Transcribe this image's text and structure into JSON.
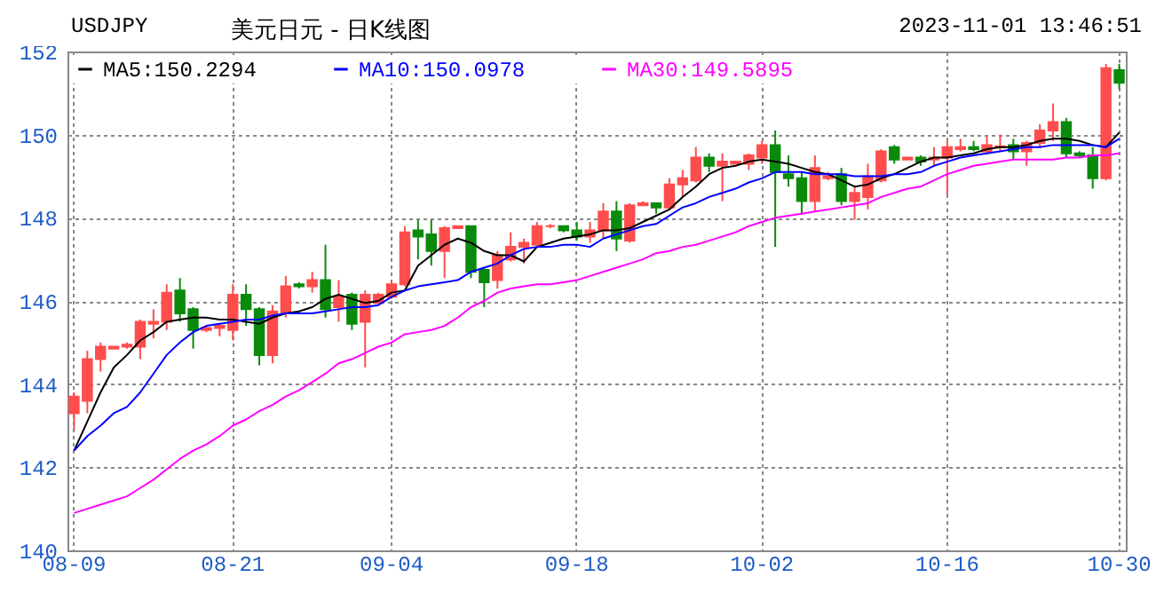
{
  "chart_data": {
    "type": "candlestick",
    "title": "美元日元 - 日K线图",
    "annotations": [
      "USDJPY",
      "2023-11-01 13:46:51"
    ],
    "categories": [
      "08-09",
      null,
      null,
      null,
      null,
      null,
      null,
      null,
      null,
      null,
      null,
      null,
      "08-21",
      null,
      null,
      null,
      null,
      null,
      null,
      null,
      null,
      null,
      null,
      null,
      "09-04",
      null,
      null,
      null,
      null,
      null,
      null,
      null,
      null,
      null,
      null,
      null,
      null,
      null,
      "09-18",
      null,
      null,
      null,
      null,
      null,
      null,
      null,
      null,
      null,
      null,
      null,
      null,
      null,
      "10-02",
      null,
      null,
      null,
      null,
      null,
      null,
      null,
      null,
      null,
      null,
      null,
      null,
      null,
      "10-16",
      null,
      null,
      null,
      null,
      null,
      null,
      null,
      null,
      null,
      null,
      null,
      null,
      "10-30"
    ],
    "ohlc": [
      [
        143.3,
        143.8,
        142.9,
        143.7
      ],
      [
        143.6,
        144.8,
        143.3,
        144.6
      ],
      [
        144.6,
        145.0,
        144.3,
        144.9
      ],
      [
        144.85,
        144.9,
        144.85,
        144.9
      ],
      [
        144.9,
        145.0,
        144.85,
        144.95
      ],
      [
        144.9,
        145.55,
        144.6,
        145.5
      ],
      [
        145.45,
        145.8,
        145.1,
        145.5
      ],
      [
        145.5,
        146.4,
        145.3,
        146.2
      ],
      [
        146.25,
        146.55,
        145.5,
        145.7
      ],
      [
        145.8,
        145.85,
        144.85,
        145.3
      ],
      [
        145.3,
        145.4,
        145.25,
        145.35
      ],
      [
        145.35,
        145.45,
        145.15,
        145.4
      ],
      [
        145.3,
        146.4,
        145.05,
        146.15
      ],
      [
        146.15,
        146.4,
        145.4,
        145.8
      ],
      [
        145.8,
        145.85,
        144.45,
        144.7
      ],
      [
        144.7,
        145.9,
        144.5,
        145.75
      ],
      [
        145.7,
        146.6,
        145.6,
        146.35
      ],
      [
        146.4,
        146.45,
        146.3,
        146.35
      ],
      [
        146.35,
        146.7,
        146.2,
        146.5
      ],
      [
        146.5,
        147.35,
        145.6,
        145.8
      ],
      [
        145.85,
        146.5,
        145.5,
        146.1
      ],
      [
        146.15,
        146.2,
        145.3,
        145.45
      ],
      [
        145.5,
        146.25,
        144.4,
        146.15
      ],
      [
        145.95,
        146.2,
        145.95,
        146.15
      ],
      [
        146.1,
        146.5,
        146.05,
        146.4
      ],
      [
        146.4,
        147.8,
        146.35,
        147.65
      ],
      [
        147.7,
        147.95,
        147.0,
        147.55
      ],
      [
        147.6,
        147.95,
        146.85,
        147.2
      ],
      [
        147.2,
        147.8,
        146.55,
        147.75
      ],
      [
        147.75,
        147.8,
        147.75,
        147.8
      ],
      [
        147.8,
        147.8,
        146.55,
        146.7
      ],
      [
        146.75,
        146.8,
        145.85,
        146.45
      ],
      [
        146.5,
        147.2,
        146.3,
        147.1
      ],
      [
        147.0,
        147.65,
        146.95,
        147.3
      ],
      [
        147.3,
        147.5,
        146.9,
        147.4
      ],
      [
        147.35,
        147.9,
        147.3,
        147.8
      ],
      [
        147.8,
        147.85,
        147.75,
        147.8
      ],
      [
        147.8,
        147.8,
        147.65,
        147.7
      ],
      [
        147.7,
        147.9,
        147.45,
        147.55
      ],
      [
        147.55,
        147.9,
        147.4,
        147.7
      ],
      [
        147.7,
        148.35,
        147.5,
        148.15
      ],
      [
        148.15,
        148.4,
        147.2,
        147.5
      ],
      [
        147.45,
        148.35,
        147.4,
        148.3
      ],
      [
        148.3,
        148.4,
        148.3,
        148.35
      ],
      [
        148.35,
        148.35,
        148.1,
        148.25
      ],
      [
        148.25,
        148.95,
        148.2,
        148.8
      ],
      [
        148.8,
        149.15,
        148.5,
        148.95
      ],
      [
        148.9,
        149.7,
        148.85,
        149.45
      ],
      [
        149.45,
        149.55,
        149.1,
        149.25
      ],
      [
        149.25,
        149.55,
        148.4,
        149.35
      ],
      [
        149.3,
        149.35,
        149.3,
        149.35
      ],
      [
        149.3,
        149.55,
        149.15,
        149.5
      ],
      [
        149.45,
        149.85,
        149.3,
        149.75
      ],
      [
        149.75,
        150.1,
        147.3,
        149.1
      ],
      [
        149.05,
        149.5,
        148.75,
        148.95
      ],
      [
        148.95,
        149.1,
        148.1,
        148.4
      ],
      [
        148.4,
        149.5,
        148.15,
        149.2
      ],
      [
        148.95,
        149.1,
        148.9,
        149.0
      ],
      [
        149.05,
        149.2,
        148.3,
        148.4
      ],
      [
        148.4,
        148.75,
        147.95,
        148.6
      ],
      [
        148.5,
        149.3,
        148.2,
        149.0
      ],
      [
        148.9,
        149.65,
        148.85,
        149.6
      ],
      [
        149.7,
        149.75,
        149.3,
        149.4
      ],
      [
        149.4,
        149.45,
        149.4,
        149.45
      ],
      [
        149.45,
        149.5,
        149.25,
        149.35
      ],
      [
        149.4,
        149.7,
        149.25,
        149.45
      ],
      [
        149.45,
        149.85,
        148.55,
        149.7
      ],
      [
        149.65,
        149.9,
        149.6,
        149.7
      ],
      [
        149.7,
        149.85,
        149.6,
        149.65
      ],
      [
        149.6,
        149.95,
        149.55,
        149.75
      ],
      [
        149.7,
        150.0,
        149.6,
        149.72
      ],
      [
        149.75,
        149.9,
        149.4,
        149.6
      ],
      [
        149.6,
        149.85,
        149.25,
        149.8
      ],
      [
        149.8,
        150.25,
        149.7,
        150.1
      ],
      [
        150.1,
        150.75,
        149.85,
        150.3
      ],
      [
        150.3,
        150.4,
        149.45,
        149.55
      ],
      [
        149.55,
        149.6,
        149.45,
        149.5
      ],
      [
        149.5,
        149.7,
        148.7,
        148.95
      ],
      [
        148.95,
        151.7,
        148.9,
        151.6
      ],
      [
        151.55,
        151.7,
        151.1,
        151.25
      ]
    ],
    "colors": [
      "#ff4d4d",
      "#ff4d4d",
      "#ff4d4d",
      "#ff4d4d",
      "#ff4d4d",
      "#ff4d4d",
      "#ff4d4d",
      "#ff4d4d",
      "#0a8a0a",
      "#0a8a0a",
      "#ff4d4d",
      "#ff4d4d",
      "#ff4d4d",
      "#0a8a0a",
      "#0a8a0a",
      "#ff4d4d",
      "#ff4d4d",
      "#0a8a0a",
      "#ff4d4d",
      "#0a8a0a",
      "#ff4d4d",
      "#0a8a0a",
      "#ff4d4d",
      "#ff4d4d",
      "#ff4d4d",
      "#ff4d4d",
      "#0a8a0a",
      "#0a8a0a",
      "#ff4d4d",
      "#ff4d4d",
      "#0a8a0a",
      "#0a8a0a",
      "#ff4d4d",
      "#ff4d4d",
      "#ff4d4d",
      "#ff4d4d",
      "#ff4d4d",
      "#0a8a0a",
      "#0a8a0a",
      "#ff4d4d",
      "#ff4d4d",
      "#0a8a0a",
      "#ff4d4d",
      "#ff4d4d",
      "#0a8a0a",
      "#ff4d4d",
      "#ff4d4d",
      "#ff4d4d",
      "#0a8a0a",
      "#ff4d4d",
      "#ff4d4d",
      "#ff4d4d",
      "#ff4d4d",
      "#0a8a0a",
      "#0a8a0a",
      "#0a8a0a",
      "#ff4d4d",
      "#ff4d4d",
      "#0a8a0a",
      "#ff4d4d",
      "#ff4d4d",
      "#ff4d4d",
      "#0a8a0a",
      "#ff4d4d",
      "#0a8a0a",
      "#ff4d4d",
      "#ff4d4d",
      "#ff4d4d",
      "#0a8a0a",
      "#ff4d4d",
      "#ff4d4d",
      "#0a8a0a",
      "#ff4d4d",
      "#ff4d4d",
      "#ff4d4d",
      "#0a8a0a",
      "#0a8a0a",
      "#0a8a0a",
      "#ff4d4d",
      "#0a8a0a"
    ],
    "series": [
      {
        "name": "MA5:150.2294",
        "type": "line",
        "color": "#000000",
        "values": [
          142.4,
          143.1,
          143.8,
          144.4,
          144.7,
          145.05,
          145.25,
          145.5,
          145.55,
          145.6,
          145.6,
          145.55,
          145.55,
          145.5,
          145.45,
          145.6,
          145.7,
          145.75,
          145.85,
          146.05,
          146.15,
          146.05,
          145.95,
          146.0,
          146.2,
          146.25,
          146.85,
          147.1,
          147.35,
          147.5,
          147.4,
          147.2,
          147.1,
          147.1,
          146.95,
          147.3,
          147.4,
          147.5,
          147.55,
          147.6,
          147.7,
          147.7,
          147.75,
          147.9,
          148.05,
          148.2,
          148.5,
          148.75,
          149.05,
          149.2,
          149.25,
          149.35,
          149.4,
          149.35,
          149.3,
          149.2,
          149.1,
          149.05,
          148.9,
          148.75,
          148.8,
          148.95,
          149.05,
          149.2,
          149.35,
          149.45,
          149.45,
          149.5,
          149.55,
          149.65,
          149.7,
          149.7,
          149.75,
          149.85,
          149.9,
          149.9,
          149.85,
          149.75,
          149.7,
          150.05
        ]
      },
      {
        "name": "MA10:150.0978",
        "type": "line",
        "color": "#0000ff",
        "values": [
          142.4,
          142.75,
          143.0,
          143.3,
          143.45,
          143.8,
          144.25,
          144.7,
          145.0,
          145.25,
          145.4,
          145.45,
          145.5,
          145.55,
          145.55,
          145.65,
          145.7,
          145.7,
          145.7,
          145.75,
          145.8,
          145.85,
          145.85,
          145.9,
          146.1,
          146.25,
          146.35,
          146.4,
          146.45,
          146.5,
          146.7,
          146.8,
          146.9,
          147.1,
          147.25,
          147.3,
          147.3,
          147.35,
          147.35,
          147.3,
          147.5,
          147.6,
          147.7,
          147.8,
          147.85,
          148.05,
          148.25,
          148.35,
          148.5,
          148.6,
          148.7,
          148.85,
          148.95,
          149.1,
          149.1,
          149.1,
          149.05,
          149.05,
          149.05,
          149.0,
          149.0,
          149.0,
          149.05,
          149.05,
          149.1,
          149.25,
          149.35,
          149.45,
          149.5,
          149.55,
          149.6,
          149.65,
          149.7,
          149.7,
          149.75,
          149.75,
          149.75,
          149.75,
          149.7,
          149.9
        ]
      },
      {
        "name": "MA30:149.5895",
        "type": "line",
        "color": "#ff00ff",
        "values": [
          140.9,
          141.0,
          141.1,
          141.2,
          141.3,
          141.5,
          141.7,
          141.95,
          142.2,
          142.4,
          142.55,
          142.75,
          143.0,
          143.15,
          143.35,
          143.5,
          143.7,
          143.85,
          144.05,
          144.25,
          144.5,
          144.6,
          144.75,
          144.9,
          145.0,
          145.2,
          145.25,
          145.3,
          145.4,
          145.6,
          145.85,
          146.0,
          146.2,
          146.3,
          146.35,
          146.4,
          146.4,
          146.45,
          146.5,
          146.6,
          146.7,
          146.8,
          146.9,
          147.0,
          147.15,
          147.2,
          147.3,
          147.35,
          147.45,
          147.55,
          147.65,
          147.8,
          147.9,
          148.0,
          148.05,
          148.1,
          148.15,
          148.2,
          148.25,
          148.3,
          148.35,
          148.5,
          148.6,
          148.7,
          148.75,
          148.9,
          149.05,
          149.15,
          149.25,
          149.3,
          149.35,
          149.4,
          149.4,
          149.4,
          149.4,
          149.45,
          149.45,
          149.5,
          149.5,
          149.55
        ]
      }
    ],
    "ylim": [
      140,
      152
    ],
    "yticks": [
      140,
      142,
      144,
      146,
      148,
      150,
      152
    ],
    "grid": true,
    "legend": "top left"
  }
}
